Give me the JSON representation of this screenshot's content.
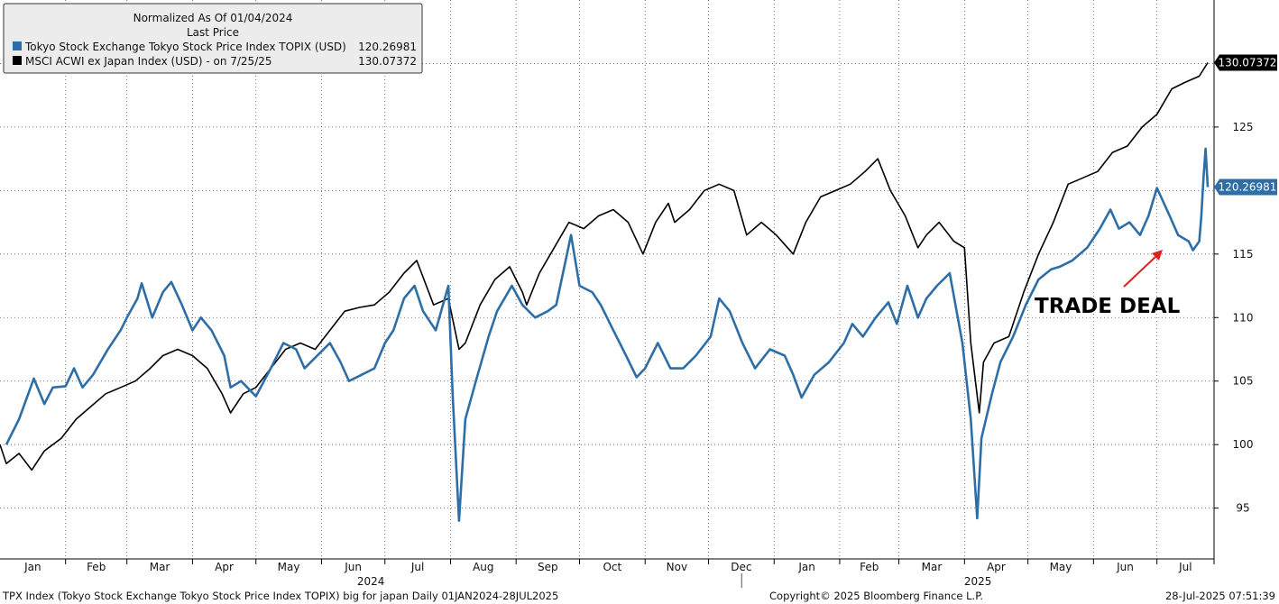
{
  "chart_data": {
    "type": "line",
    "legend": {
      "title": "Normalized As Of 01/04/2024",
      "subtitle": "Last Price",
      "position": "top-left",
      "entries": [
        {
          "label": "Tokyo Stock Exchange Tokyo Stock Price Index TOPIX (USD)",
          "value": "120.26981",
          "color": "#2e6ea6"
        },
        {
          "label": "MSCI ACWI ex Japan Index (USD) -  on 7/25/25",
          "value": "130.07372",
          "color": "#000000"
        }
      ]
    },
    "x_range": [
      "2024-01-01",
      "2025-07-28"
    ],
    "y_range": [
      91,
      135
    ],
    "y_axis_side": "right",
    "y_ticks": [
      95,
      100,
      105,
      110,
      115,
      125
    ],
    "month_labels": [
      "Jan",
      "Feb",
      "Mar",
      "Apr",
      "May",
      "Jun",
      "Jul",
      "Aug",
      "Sep",
      "Oct",
      "Nov",
      "Dec",
      "Jan",
      "Feb",
      "Mar",
      "Apr",
      "May",
      "Jun",
      "Jul"
    ],
    "year_labels": [
      "2024",
      "2025"
    ],
    "grid": true,
    "series": [
      {
        "name": "Tokyo Stock Exchange Tokyo Stock Price Index TOPIX (USD)",
        "color": "#2e6ea6",
        "last_value": "120.26981",
        "points": [
          [
            "2024-01-04",
            100
          ],
          [
            "2024-01-10",
            102
          ],
          [
            "2024-01-17",
            105.2
          ],
          [
            "2024-01-22",
            103.2
          ],
          [
            "2024-01-26",
            104.5
          ],
          [
            "2024-02-01",
            104.6
          ],
          [
            "2024-02-05",
            106
          ],
          [
            "2024-02-09",
            104.5
          ],
          [
            "2024-02-14",
            105.5
          ],
          [
            "2024-02-21",
            107.5
          ],
          [
            "2024-02-27",
            109
          ],
          [
            "2024-03-01",
            110
          ],
          [
            "2024-03-06",
            111.5
          ],
          [
            "2024-03-08",
            112.7
          ],
          [
            "2024-03-13",
            110
          ],
          [
            "2024-03-18",
            112
          ],
          [
            "2024-03-22",
            112.8
          ],
          [
            "2024-03-27",
            111
          ],
          [
            "2024-04-01",
            109
          ],
          [
            "2024-04-05",
            110
          ],
          [
            "2024-04-10",
            109
          ],
          [
            "2024-04-16",
            107
          ],
          [
            "2024-04-19",
            104.5
          ],
          [
            "2024-04-24",
            105
          ],
          [
            "2024-05-01",
            103.8
          ],
          [
            "2024-05-08",
            106
          ],
          [
            "2024-05-14",
            108
          ],
          [
            "2024-05-20",
            107.5
          ],
          [
            "2024-05-24",
            106
          ],
          [
            "2024-05-30",
            107
          ],
          [
            "2024-06-05",
            108
          ],
          [
            "2024-06-10",
            106.5
          ],
          [
            "2024-06-14",
            105
          ],
          [
            "2024-06-20",
            105.5
          ],
          [
            "2024-06-26",
            106
          ],
          [
            "2024-07-01",
            108
          ],
          [
            "2024-07-05",
            109
          ],
          [
            "2024-07-10",
            111.5
          ],
          [
            "2024-07-15",
            112.5
          ],
          [
            "2024-07-19",
            110.5
          ],
          [
            "2024-07-25",
            109
          ],
          [
            "2024-07-31",
            112.5
          ],
          [
            "2024-08-02",
            104
          ],
          [
            "2024-08-05",
            94
          ],
          [
            "2024-08-08",
            102
          ],
          [
            "2024-08-13",
            105
          ],
          [
            "2024-08-19",
            108.5
          ],
          [
            "2024-08-23",
            110.5
          ],
          [
            "2024-08-30",
            112.5
          ],
          [
            "2024-09-04",
            111
          ],
          [
            "2024-09-10",
            110
          ],
          [
            "2024-09-16",
            110.5
          ],
          [
            "2024-09-20",
            111
          ],
          [
            "2024-09-27",
            116.5
          ],
          [
            "2024-10-01",
            112.5
          ],
          [
            "2024-10-07",
            112
          ],
          [
            "2024-10-11",
            111
          ],
          [
            "2024-10-17",
            109
          ],
          [
            "2024-10-23",
            107
          ],
          [
            "2024-10-28",
            105.3
          ],
          [
            "2024-11-01",
            106
          ],
          [
            "2024-11-07",
            108
          ],
          [
            "2024-11-13",
            106
          ],
          [
            "2024-11-19",
            106
          ],
          [
            "2024-11-25",
            107
          ],
          [
            "2024-12-02",
            108.5
          ],
          [
            "2024-12-06",
            111.5
          ],
          [
            "2024-12-11",
            110.5
          ],
          [
            "2024-12-17",
            108
          ],
          [
            "2024-12-23",
            106
          ],
          [
            "2024-12-30",
            107.5
          ],
          [
            "2025-01-06",
            107
          ],
          [
            "2025-01-10",
            105.5
          ],
          [
            "2025-01-14",
            103.7
          ],
          [
            "2025-01-20",
            105.5
          ],
          [
            "2025-01-27",
            106.5
          ],
          [
            "2025-02-03",
            108
          ],
          [
            "2025-02-07",
            109.5
          ],
          [
            "2025-02-12",
            108.5
          ],
          [
            "2025-02-18",
            110
          ],
          [
            "2025-02-24",
            111.2
          ],
          [
            "2025-02-28",
            109.5
          ],
          [
            "2025-03-05",
            112.5
          ],
          [
            "2025-03-10",
            110
          ],
          [
            "2025-03-14",
            111.5
          ],
          [
            "2025-03-19",
            112.5
          ],
          [
            "2025-03-25",
            113.5
          ],
          [
            "2025-03-31",
            108
          ],
          [
            "2025-04-04",
            102
          ],
          [
            "2025-04-07",
            94.2
          ],
          [
            "2025-04-09",
            100.5
          ],
          [
            "2025-04-14",
            104
          ],
          [
            "2025-04-18",
            106.5
          ],
          [
            "2025-04-24",
            108.5
          ],
          [
            "2025-04-30",
            111
          ],
          [
            "2025-05-06",
            113
          ],
          [
            "2025-05-12",
            113.8
          ],
          [
            "2025-05-16",
            114
          ],
          [
            "2025-05-22",
            114.5
          ],
          [
            "2025-05-29",
            115.5
          ],
          [
            "2025-06-04",
            117
          ],
          [
            "2025-06-09",
            118.5
          ],
          [
            "2025-06-13",
            117
          ],
          [
            "2025-06-18",
            117.5
          ],
          [
            "2025-06-23",
            116.5
          ],
          [
            "2025-06-27",
            118
          ],
          [
            "2025-07-01",
            120.2
          ],
          [
            "2025-07-07",
            118
          ],
          [
            "2025-07-11",
            116.5
          ],
          [
            "2025-07-16",
            116
          ],
          [
            "2025-07-18",
            115.3
          ],
          [
            "2025-07-21",
            116
          ],
          [
            "2025-07-22",
            118
          ],
          [
            "2025-07-23",
            121
          ],
          [
            "2025-07-24",
            123.3
          ],
          [
            "2025-07-25",
            120.27
          ]
        ]
      },
      {
        "name": "MSCI ACWI ex Japan Index (USD) -  on 7/25/25",
        "color": "#000000",
        "last_value": "130.07372",
        "points": [
          [
            "2024-01-01",
            100
          ],
          [
            "2024-01-04",
            98.5
          ],
          [
            "2024-01-10",
            99.3
          ],
          [
            "2024-01-16",
            98
          ],
          [
            "2024-01-22",
            99.5
          ],
          [
            "2024-01-30",
            100.5
          ],
          [
            "2024-02-06",
            102
          ],
          [
            "2024-02-13",
            103
          ],
          [
            "2024-02-20",
            104
          ],
          [
            "2024-02-27",
            104.5
          ],
          [
            "2024-03-05",
            105
          ],
          [
            "2024-03-12",
            106
          ],
          [
            "2024-03-18",
            107
          ],
          [
            "2024-03-25",
            107.5
          ],
          [
            "2024-04-01",
            107
          ],
          [
            "2024-04-08",
            106
          ],
          [
            "2024-04-15",
            104
          ],
          [
            "2024-04-19",
            102.5
          ],
          [
            "2024-04-25",
            104
          ],
          [
            "2024-05-01",
            104.5
          ],
          [
            "2024-05-08",
            106
          ],
          [
            "2024-05-15",
            107.5
          ],
          [
            "2024-05-22",
            108
          ],
          [
            "2024-05-29",
            107.5
          ],
          [
            "2024-06-05",
            109
          ],
          [
            "2024-06-12",
            110.5
          ],
          [
            "2024-06-19",
            110.8
          ],
          [
            "2024-06-26",
            111
          ],
          [
            "2024-07-03",
            112
          ],
          [
            "2024-07-10",
            113.5
          ],
          [
            "2024-07-16",
            114.5
          ],
          [
            "2024-07-24",
            111
          ],
          [
            "2024-07-31",
            111.5
          ],
          [
            "2024-08-05",
            107.5
          ],
          [
            "2024-08-08",
            108
          ],
          [
            "2024-08-15",
            111
          ],
          [
            "2024-08-22",
            113
          ],
          [
            "2024-08-29",
            114
          ],
          [
            "2024-09-04",
            112
          ],
          [
            "2024-09-06",
            111
          ],
          [
            "2024-09-12",
            113.5
          ],
          [
            "2024-09-19",
            115.5
          ],
          [
            "2024-09-26",
            117.5
          ],
          [
            "2024-10-03",
            117
          ],
          [
            "2024-10-10",
            118
          ],
          [
            "2024-10-17",
            118.5
          ],
          [
            "2024-10-24",
            117.5
          ],
          [
            "2024-10-31",
            115
          ],
          [
            "2024-11-06",
            117.5
          ],
          [
            "2024-11-12",
            119
          ],
          [
            "2024-11-15",
            117.5
          ],
          [
            "2024-11-22",
            118.5
          ],
          [
            "2024-11-29",
            120
          ],
          [
            "2024-12-06",
            120.5
          ],
          [
            "2024-12-13",
            120
          ],
          [
            "2024-12-19",
            116.5
          ],
          [
            "2024-12-26",
            117.5
          ],
          [
            "2025-01-02",
            116.5
          ],
          [
            "2025-01-10",
            115
          ],
          [
            "2025-01-16",
            117.5
          ],
          [
            "2025-01-23",
            119.5
          ],
          [
            "2025-01-30",
            120
          ],
          [
            "2025-02-06",
            120.5
          ],
          [
            "2025-02-13",
            121.5
          ],
          [
            "2025-02-19",
            122.5
          ],
          [
            "2025-02-25",
            120
          ],
          [
            "2025-03-04",
            118
          ],
          [
            "2025-03-10",
            115.5
          ],
          [
            "2025-03-14",
            116.5
          ],
          [
            "2025-03-20",
            117.5
          ],
          [
            "2025-03-27",
            116
          ],
          [
            "2025-04-01",
            115.5
          ],
          [
            "2025-04-04",
            108
          ],
          [
            "2025-04-08",
            102.5
          ],
          [
            "2025-04-10",
            106.5
          ],
          [
            "2025-04-15",
            108
          ],
          [
            "2025-04-22",
            108.5
          ],
          [
            "2025-04-29",
            112
          ],
          [
            "2025-05-06",
            115
          ],
          [
            "2025-05-13",
            117.5
          ],
          [
            "2025-05-20",
            120.5
          ],
          [
            "2025-05-27",
            121
          ],
          [
            "2025-06-03",
            121.5
          ],
          [
            "2025-06-10",
            123
          ],
          [
            "2025-06-17",
            123.5
          ],
          [
            "2025-06-24",
            125
          ],
          [
            "2025-07-01",
            126
          ],
          [
            "2025-07-08",
            128
          ],
          [
            "2025-07-14",
            128.5
          ],
          [
            "2025-07-21",
            129
          ],
          [
            "2025-07-25",
            130.07
          ]
        ]
      }
    ],
    "annotation": {
      "text": "TRADE DEAL",
      "arrow_to": [
        "2025-07-18",
        115.3
      ],
      "color": "#e02020"
    },
    "footer": {
      "left": "TPX Index (Tokyo Stock Exchange Tokyo Stock Price Index TOPIX) big for japan  Daily 01JAN2024-28JUL2025",
      "center": "Copyright© 2025 Bloomberg Finance L.P.",
      "right": "28-Jul-2025 07:51:39"
    }
  }
}
